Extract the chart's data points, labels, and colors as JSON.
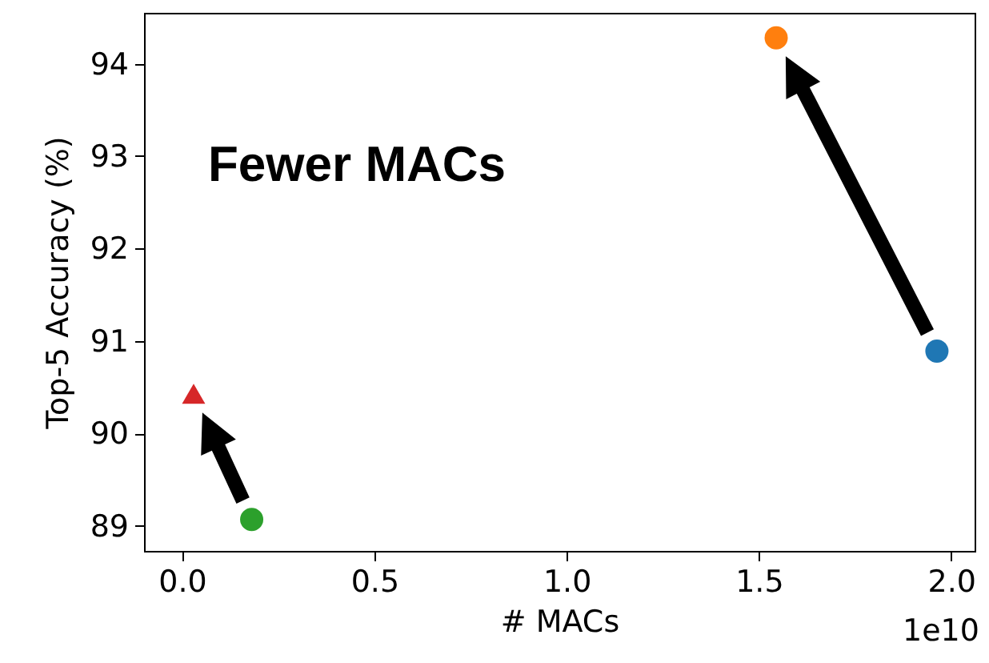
{
  "chart_data": {
    "type": "scatter",
    "xlabel": "# MACs",
    "ylabel": "Top-5 Accuracy (%)",
    "annotations": [
      "Fewer MACs",
      "1e10"
    ],
    "series": [
      {
        "color": "#1f77b4",
        "marker": "circle",
        "x": [
          1.963
        ],
        "values": [
          90.89
        ]
      },
      {
        "color": "#ff7f0e",
        "marker": "circle",
        "x": [
          1.545
        ],
        "values": [
          94.28
        ]
      },
      {
        "color": "#2ca02c",
        "marker": "circle",
        "x": [
          0.181
        ],
        "values": [
          89.07
        ]
      },
      {
        "color": "#d62728",
        "marker": "triangle",
        "x": [
          0.03
        ],
        "values": [
          90.43
        ]
      }
    ],
    "xlim": [
      -0.099,
      2.061
    ],
    "xticks": [
      {
        "value": 0,
        "label": "0.0"
      },
      0.5,
      {
        "value": 1,
        "label": "1.0"
      },
      1.5,
      {
        "value": 2,
        "label": "2.0"
      }
    ],
    "ylim": [
      88.73,
      94.55
    ],
    "yticks": [
      89,
      90,
      91,
      92,
      93,
      94
    ],
    "grid": false
  }
}
